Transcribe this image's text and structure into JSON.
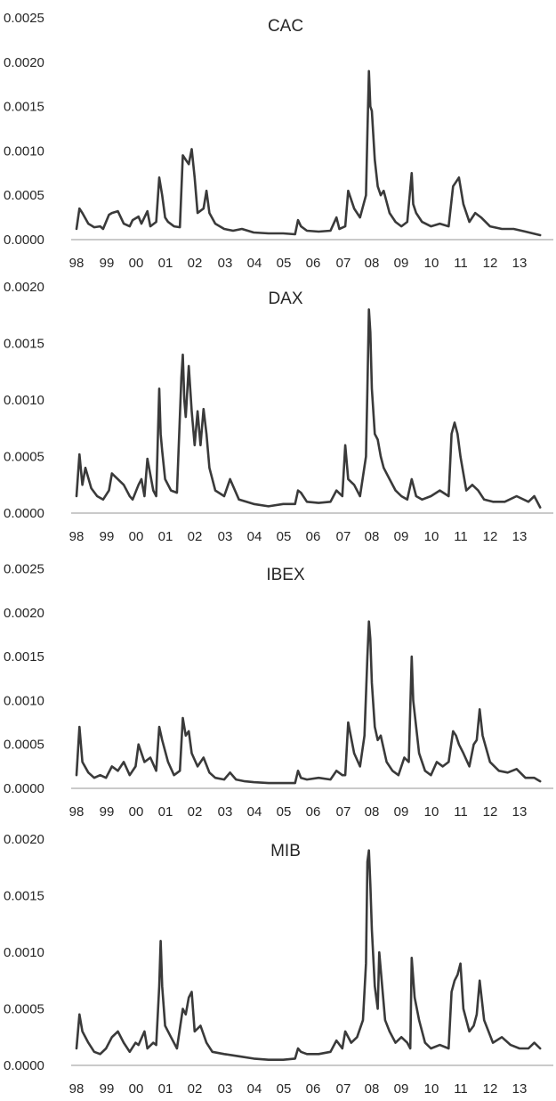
{
  "chart_data": [
    {
      "type": "line",
      "title": "CAC",
      "x_tick_labels": [
        "98",
        "99",
        "00",
        "01",
        "02",
        "03",
        "04",
        "05",
        "06",
        "07",
        "08",
        "09",
        "10",
        "11",
        "12",
        "13"
      ],
      "y_tick_labels": [
        "0.0000",
        "0.0005",
        "0.0010",
        "0.0015",
        "0.0020",
        "0.0025"
      ],
      "ylim": [
        0,
        0.0025
      ],
      "xlim": [
        1998.0,
        2013.7
      ],
      "grid": false,
      "line_color": "#3a3a3a",
      "axis_color": "#b8b8b8",
      "x": [
        1998.0,
        1998.1,
        1998.2,
        1998.4,
        1998.6,
        1998.8,
        1998.9,
        1999.1,
        1999.2,
        1999.4,
        1999.6,
        1999.8,
        1999.9,
        2000.1,
        2000.2,
        2000.4,
        2000.5,
        2000.7,
        2000.8,
        2000.9,
        2001.0,
        2001.1,
        2001.3,
        2001.5,
        2001.6,
        2001.7,
        2001.8,
        2001.9,
        2002.0,
        2002.1,
        2002.3,
        2002.4,
        2002.5,
        2002.7,
        2003.0,
        2003.3,
        2003.6,
        2004.0,
        2004.5,
        2005.0,
        2005.4,
        2005.5,
        2005.6,
        2005.8,
        2006.2,
        2006.6,
        2006.8,
        2006.9,
        2007.1,
        2007.2,
        2007.4,
        2007.6,
        2007.8,
        2007.85,
        2007.9,
        2007.95,
        2008.0,
        2008.1,
        2008.2,
        2008.3,
        2008.4,
        2008.6,
        2008.8,
        2009.0,
        2009.2,
        2009.35,
        2009.4,
        2009.5,
        2009.7,
        2010.0,
        2010.3,
        2010.6,
        2010.75,
        2010.85,
        2010.95,
        2011.1,
        2011.3,
        2011.5,
        2011.7,
        2012.0,
        2012.4,
        2012.8,
        2013.2,
        2013.7
      ],
      "y": [
        0.00012,
        0.00035,
        0.0003,
        0.00018,
        0.00014,
        0.00015,
        0.00012,
        0.00028,
        0.0003,
        0.00032,
        0.00018,
        0.00015,
        0.00022,
        0.00026,
        0.00018,
        0.00032,
        0.00015,
        0.0002,
        0.0007,
        0.0005,
        0.00025,
        0.0002,
        0.00015,
        0.00014,
        0.00095,
        0.0009,
        0.00085,
        0.00102,
        0.0007,
        0.0003,
        0.00035,
        0.00055,
        0.0003,
        0.00018,
        0.00012,
        0.0001,
        0.00012,
        8e-05,
        7e-05,
        7e-05,
        6e-05,
        0.00022,
        0.00015,
        0.0001,
        9e-05,
        0.0001,
        0.00025,
        0.00012,
        0.00015,
        0.00055,
        0.00035,
        0.00025,
        0.0005,
        0.0012,
        0.0019,
        0.0015,
        0.00145,
        0.0009,
        0.0006,
        0.0005,
        0.00055,
        0.0003,
        0.0002,
        0.00015,
        0.0002,
        0.00075,
        0.0004,
        0.0003,
        0.0002,
        0.00015,
        0.00018,
        0.00015,
        0.0006,
        0.00065,
        0.0007,
        0.0004,
        0.0002,
        0.0003,
        0.00025,
        0.00015,
        0.00012,
        0.00012,
        9e-05,
        5e-05
      ]
    },
    {
      "type": "line",
      "title": "DAX",
      "x_tick_labels": [
        "98",
        "99",
        "00",
        "01",
        "02",
        "03",
        "04",
        "05",
        "06",
        "07",
        "08",
        "09",
        "10",
        "11",
        "12",
        "13"
      ],
      "y_tick_labels": [
        "0.0000",
        "0.0005",
        "0.0010",
        "0.0015",
        "0.0020"
      ],
      "ylim": [
        0,
        0.002
      ],
      "xlim": [
        1998.0,
        2013.7
      ],
      "grid": false,
      "line_color": "#3a3a3a",
      "axis_color": "#b8b8b8",
      "x": [
        1998.0,
        1998.1,
        1998.2,
        1998.3,
        1998.5,
        1998.7,
        1998.9,
        1999.1,
        1999.2,
        1999.4,
        1999.6,
        1999.8,
        1999.9,
        2000.1,
        2000.2,
        2000.3,
        2000.4,
        2000.6,
        2000.7,
        2000.8,
        2000.85,
        2000.9,
        2001.0,
        2001.2,
        2001.4,
        2001.55,
        2001.6,
        2001.65,
        2001.7,
        2001.8,
        2001.9,
        2002.0,
        2002.1,
        2002.2,
        2002.3,
        2002.4,
        2002.5,
        2002.7,
        2003.0,
        2003.2,
        2003.5,
        2004.0,
        2004.5,
        2005.0,
        2005.4,
        2005.5,
        2005.6,
        2005.8,
        2006.2,
        2006.6,
        2006.8,
        2007.0,
        2007.1,
        2007.2,
        2007.4,
        2007.6,
        2007.8,
        2007.85,
        2007.9,
        2007.95,
        2008.0,
        2008.1,
        2008.2,
        2008.3,
        2008.4,
        2008.6,
        2008.8,
        2009.0,
        2009.2,
        2009.35,
        2009.4,
        2009.5,
        2009.7,
        2010.0,
        2010.3,
        2010.6,
        2010.7,
        2010.8,
        2010.9,
        2011.0,
        2011.2,
        2011.4,
        2011.6,
        2011.8,
        2012.1,
        2012.5,
        2012.9,
        2013.3,
        2013.5,
        2013.7
      ],
      "y": [
        0.00015,
        0.00052,
        0.00025,
        0.0004,
        0.00022,
        0.00015,
        0.00012,
        0.0002,
        0.00035,
        0.0003,
        0.00025,
        0.00015,
        0.00012,
        0.00025,
        0.0003,
        0.00015,
        0.00048,
        0.0002,
        0.00015,
        0.0011,
        0.0007,
        0.00055,
        0.0003,
        0.0002,
        0.00018,
        0.0012,
        0.0014,
        0.001,
        0.00085,
        0.0013,
        0.0009,
        0.0006,
        0.0009,
        0.0006,
        0.00092,
        0.0007,
        0.0004,
        0.0002,
        0.00015,
        0.0003,
        0.00012,
        8e-05,
        6e-05,
        8e-05,
        8e-05,
        0.0002,
        0.00018,
        0.0001,
        9e-05,
        0.0001,
        0.0002,
        0.00015,
        0.0006,
        0.0003,
        0.00025,
        0.00015,
        0.0005,
        0.0011,
        0.0018,
        0.0016,
        0.0011,
        0.0007,
        0.00065,
        0.0005,
        0.0004,
        0.0003,
        0.0002,
        0.00015,
        0.00012,
        0.0003,
        0.00025,
        0.00015,
        0.00012,
        0.00015,
        0.0002,
        0.00015,
        0.0007,
        0.0008,
        0.0007,
        0.0005,
        0.0002,
        0.00025,
        0.0002,
        0.00012,
        0.0001,
        0.0001,
        0.00015,
        0.0001,
        0.00015,
        5e-05
      ]
    },
    {
      "type": "line",
      "title": "IBEX",
      "x_tick_labels": [
        "98",
        "99",
        "00",
        "01",
        "02",
        "03",
        "04",
        "05",
        "06",
        "07",
        "08",
        "09",
        "10",
        "11",
        "12",
        "13"
      ],
      "y_tick_labels": [
        "0.0000",
        "0.0005",
        "0.0010",
        "0.0015",
        "0.0020",
        "0.0025"
      ],
      "ylim": [
        0,
        0.0025
      ],
      "xlim": [
        1998.0,
        2013.7
      ],
      "grid": false,
      "line_color": "#3a3a3a",
      "axis_color": "#b8b8b8",
      "x": [
        1998.0,
        1998.1,
        1998.2,
        1998.4,
        1998.6,
        1998.8,
        1999.0,
        1999.2,
        1999.4,
        1999.6,
        1999.8,
        2000.0,
        2000.1,
        2000.3,
        2000.5,
        2000.7,
        2000.8,
        2000.9,
        2001.1,
        2001.3,
        2001.5,
        2001.6,
        2001.7,
        2001.8,
        2001.9,
        2002.1,
        2002.3,
        2002.5,
        2002.7,
        2003.0,
        2003.2,
        2003.4,
        2003.7,
        2004.0,
        2004.5,
        2005.0,
        2005.4,
        2005.5,
        2005.6,
        2005.8,
        2006.2,
        2006.6,
        2006.8,
        2007.0,
        2007.1,
        2007.2,
        2007.4,
        2007.6,
        2007.75,
        2007.85,
        2007.9,
        2007.95,
        2008.0,
        2008.1,
        2008.2,
        2008.3,
        2008.4,
        2008.5,
        2008.7,
        2008.9,
        2009.1,
        2009.25,
        2009.35,
        2009.4,
        2009.5,
        2009.6,
        2009.8,
        2010.0,
        2010.2,
        2010.4,
        2010.6,
        2010.75,
        2010.85,
        2010.95,
        2011.1,
        2011.3,
        2011.45,
        2011.55,
        2011.65,
        2011.75,
        2012.0,
        2012.3,
        2012.6,
        2012.9,
        2013.2,
        2013.5,
        2013.7
      ],
      "y": [
        0.00015,
        0.0007,
        0.0003,
        0.00018,
        0.00012,
        0.00015,
        0.00012,
        0.00025,
        0.0002,
        0.0003,
        0.00015,
        0.00025,
        0.0005,
        0.0003,
        0.00035,
        0.0002,
        0.0007,
        0.00055,
        0.0003,
        0.00015,
        0.0002,
        0.0008,
        0.0006,
        0.00065,
        0.0004,
        0.00025,
        0.00035,
        0.00018,
        0.00012,
        0.0001,
        0.00018,
        0.0001,
        8e-05,
        7e-05,
        6e-05,
        6e-05,
        6e-05,
        0.0002,
        0.00012,
        0.0001,
        0.00012,
        0.0001,
        0.0002,
        0.00015,
        0.00015,
        0.00075,
        0.0004,
        0.00025,
        0.0006,
        0.0015,
        0.0019,
        0.0017,
        0.0012,
        0.0007,
        0.00055,
        0.0006,
        0.00045,
        0.0003,
        0.0002,
        0.00015,
        0.00035,
        0.0003,
        0.0015,
        0.001,
        0.0007,
        0.0004,
        0.0002,
        0.00015,
        0.0003,
        0.00025,
        0.0003,
        0.00065,
        0.0006,
        0.0005,
        0.0004,
        0.00025,
        0.0005,
        0.00055,
        0.0009,
        0.0006,
        0.0003,
        0.0002,
        0.00018,
        0.00022,
        0.00012,
        0.00012,
        8e-05
      ]
    },
    {
      "type": "line",
      "title": "MIB",
      "x_tick_labels": [
        "98",
        "99",
        "00",
        "01",
        "02",
        "03",
        "04",
        "05",
        "06",
        "07",
        "08",
        "09",
        "10",
        "11",
        "12",
        "13"
      ],
      "y_tick_labels": [
        "0.0000",
        "0.0005",
        "0.0010",
        "0.0015",
        "0.0020"
      ],
      "ylim": [
        0,
        0.002
      ],
      "xlim": [
        1998.0,
        2013.7
      ],
      "grid": false,
      "line_color": "#3a3a3a",
      "axis_color": "#b8b8b8",
      "x": [
        1998.0,
        1998.1,
        1998.2,
        1998.4,
        1998.6,
        1998.8,
        1999.0,
        1999.2,
        1999.4,
        1999.6,
        1999.8,
        2000.0,
        2000.1,
        2000.3,
        2000.4,
        2000.6,
        2000.7,
        2000.8,
        2000.85,
        2000.9,
        2001.0,
        2001.2,
        2001.4,
        2001.6,
        2001.7,
        2001.8,
        2001.9,
        2002.0,
        2002.2,
        2002.4,
        2002.6,
        2003.0,
        2003.5,
        2004.0,
        2004.5,
        2005.0,
        2005.4,
        2005.5,
        2005.6,
        2005.8,
        2006.2,
        2006.6,
        2006.8,
        2007.0,
        2007.1,
        2007.3,
        2007.5,
        2007.7,
        2007.8,
        2007.85,
        2007.9,
        2007.95,
        2008.0,
        2008.1,
        2008.2,
        2008.25,
        2008.35,
        2008.45,
        2008.6,
        2008.8,
        2009.0,
        2009.2,
        2009.3,
        2009.35,
        2009.45,
        2009.6,
        2009.8,
        2010.0,
        2010.3,
        2010.6,
        2010.7,
        2010.8,
        2010.9,
        2011.0,
        2011.1,
        2011.3,
        2011.45,
        2011.55,
        2011.65,
        2011.8,
        2012.1,
        2012.4,
        2012.7,
        2013.0,
        2013.3,
        2013.5,
        2013.7
      ],
      "y": [
        0.00015,
        0.00045,
        0.0003,
        0.0002,
        0.00012,
        0.0001,
        0.00015,
        0.00025,
        0.0003,
        0.0002,
        0.00012,
        0.0002,
        0.00018,
        0.0003,
        0.00015,
        0.0002,
        0.00018,
        0.0007,
        0.0011,
        0.0007,
        0.00035,
        0.00025,
        0.00015,
        0.0005,
        0.00045,
        0.0006,
        0.00065,
        0.0003,
        0.00035,
        0.0002,
        0.00012,
        0.0001,
        8e-05,
        6e-05,
        5e-05,
        5e-05,
        6e-05,
        0.00015,
        0.00012,
        0.0001,
        0.0001,
        0.00012,
        0.00022,
        0.00015,
        0.0003,
        0.0002,
        0.00025,
        0.0004,
        0.0009,
        0.0018,
        0.0019,
        0.0016,
        0.0012,
        0.0007,
        0.0005,
        0.001,
        0.0007,
        0.0004,
        0.0003,
        0.0002,
        0.00025,
        0.0002,
        0.00015,
        0.00095,
        0.0006,
        0.0004,
        0.0002,
        0.00015,
        0.00018,
        0.00015,
        0.00065,
        0.00075,
        0.0008,
        0.0009,
        0.0005,
        0.0003,
        0.00035,
        0.00045,
        0.00075,
        0.0004,
        0.0002,
        0.00025,
        0.00018,
        0.00015,
        0.00015,
        0.0002,
        0.00015
      ]
    }
  ]
}
